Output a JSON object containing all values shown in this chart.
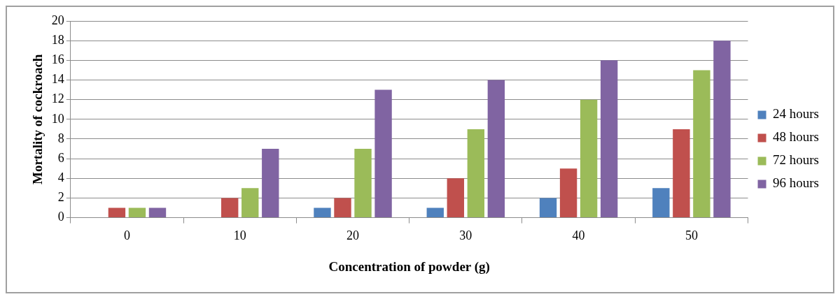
{
  "chart_data": {
    "type": "bar",
    "xlabel": "Concentration of powder (g)",
    "ylabel": "Mortality of cockroach",
    "categories": [
      "0",
      "10",
      "20",
      "30",
      "40",
      "50"
    ],
    "series": [
      {
        "name": "24 hours",
        "color": "#4f81bd",
        "values": [
          0,
          0,
          1,
          1,
          2,
          3
        ]
      },
      {
        "name": "48 hours",
        "color": "#c0504d",
        "values": [
          1,
          2,
          2,
          4,
          5,
          9
        ]
      },
      {
        "name": "72 hours",
        "color": "#9bbb59",
        "values": [
          1,
          3,
          7,
          9,
          12,
          15
        ]
      },
      {
        "name": "96 hours",
        "color": "#8064a2",
        "values": [
          1,
          7,
          13,
          14,
          16,
          18
        ]
      }
    ],
    "ylim": [
      0,
      20
    ],
    "yticks": [
      0,
      2,
      4,
      6,
      8,
      10,
      12,
      14,
      16,
      18,
      20
    ],
    "grid": "y",
    "legend": "right"
  }
}
